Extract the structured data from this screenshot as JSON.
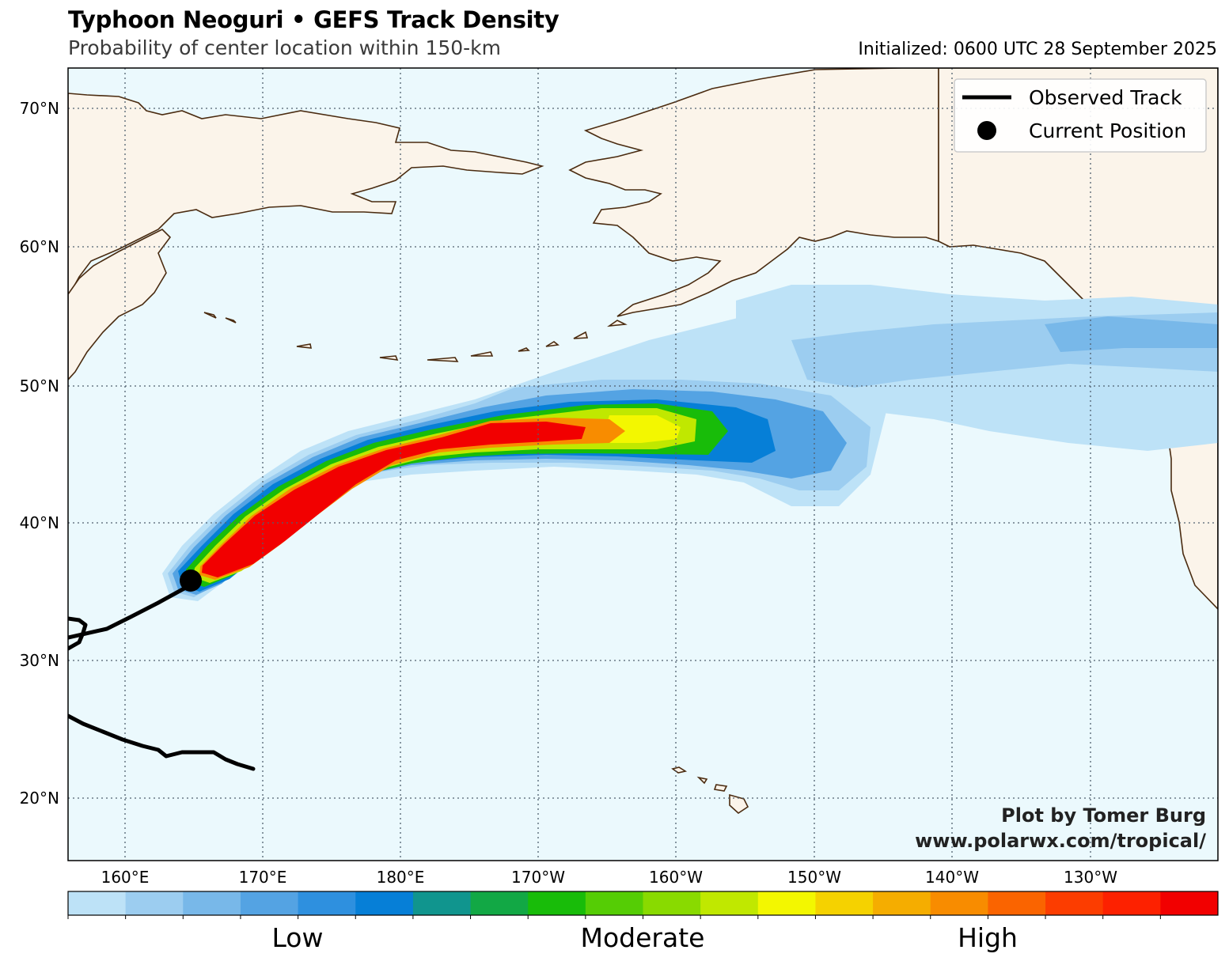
{
  "header": {
    "title": "Typhoon Neoguri • GEFS Track Density",
    "subtitle": "Probability of center location within 150-km",
    "initialized": "Initialized: 0600 UTC 28 September 2025"
  },
  "map": {
    "lat_labels": [
      "70°N",
      "60°N",
      "50°N",
      "40°N",
      "30°N",
      "20°N"
    ],
    "lon_labels": [
      "160°E",
      "170°E",
      "180°E",
      "170°W",
      "160°W",
      "150°W",
      "140°W",
      "130°W"
    ],
    "ocean_color": "#ebf9fd",
    "land_color": "#fbf4ea",
    "coast_color": "#4a2b10",
    "observed_track_color": "#000000"
  },
  "legend": {
    "observed_track": "Observed Track",
    "current_position": "Current Position"
  },
  "credit": {
    "line1": "Plot by Tomer Burg",
    "line2": "www.polarwx.com/tropical/"
  },
  "colorbar": {
    "colors": [
      "#bde2f7",
      "#9ccdf0",
      "#78b8e9",
      "#54a3e3",
      "#2e90df",
      "#067fd7",
      "#10958e",
      "#12a845",
      "#18bc09",
      "#55cd05",
      "#89da00",
      "#c0e800",
      "#f3f700",
      "#f5d200",
      "#f5ad00",
      "#f88c00",
      "#fa6400",
      "#fc3d00",
      "#fd2100",
      "#f20000"
    ],
    "labels": [
      "Low",
      "Moderate",
      "High"
    ]
  }
}
